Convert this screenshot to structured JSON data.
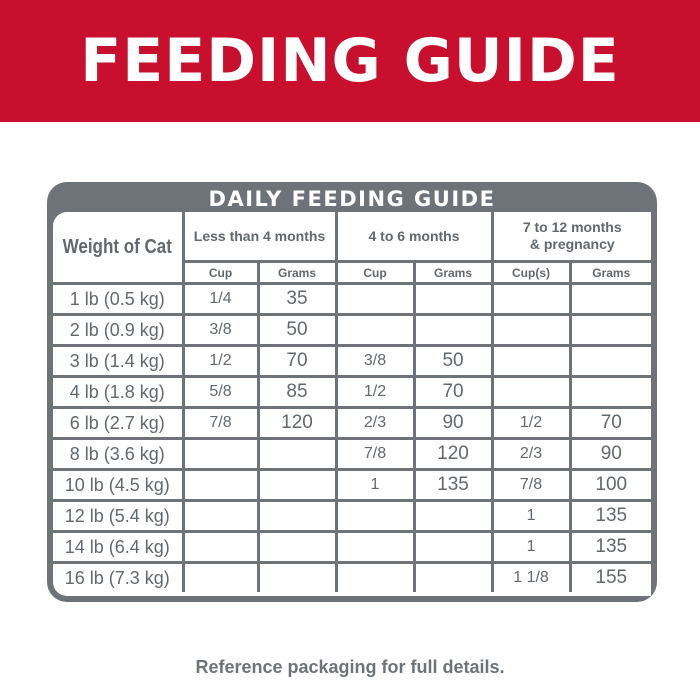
{
  "banner": {
    "title": "FEEDING GUIDE"
  },
  "colors": {
    "banner": "#c8102e",
    "table_border": "#6d7378",
    "text": "#62686d"
  },
  "table": {
    "title": "DAILY FEEDING GUIDE",
    "weight_header": "Weight of Cat",
    "age_groups": [
      "Less than 4 months",
      "4 to 6 months",
      "7 to 12 months & pregnancy"
    ],
    "sub_headers": [
      "Cup",
      "Grams",
      "Cup",
      "Grams",
      "Cup(s)",
      "Grams"
    ],
    "rows": [
      {
        "weight": "1 lb (0.5 kg)",
        "cells": [
          "1/4",
          "35",
          "",
          "",
          "",
          ""
        ]
      },
      {
        "weight": "2 lb (0.9 kg)",
        "cells": [
          "3/8",
          "50",
          "",
          "",
          "",
          ""
        ]
      },
      {
        "weight": "3 lb (1.4 kg)",
        "cells": [
          "1/2",
          "70",
          "3/8",
          "50",
          "",
          ""
        ]
      },
      {
        "weight": "4 lb (1.8 kg)",
        "cells": [
          "5/8",
          "85",
          "1/2",
          "70",
          "",
          ""
        ]
      },
      {
        "weight": "6 lb (2.7 kg)",
        "cells": [
          "7/8",
          "120",
          "2/3",
          "90",
          "1/2",
          "70"
        ]
      },
      {
        "weight": "8 lb (3.6 kg)",
        "cells": [
          "",
          "",
          "7/8",
          "120",
          "2/3",
          "90"
        ]
      },
      {
        "weight": "10 lb (4.5 kg)",
        "cells": [
          "",
          "",
          "1",
          "135",
          "7/8",
          "100"
        ]
      },
      {
        "weight": "12 lb (5.4 kg)",
        "cells": [
          "",
          "",
          "",
          "",
          "1",
          "135"
        ]
      },
      {
        "weight": "14 lb (6.4 kg)",
        "cells": [
          "",
          "",
          "",
          "",
          "1",
          "135"
        ]
      },
      {
        "weight": "16 lb (7.3 kg)",
        "cells": [
          "",
          "",
          "",
          "",
          "1 1/8",
          "155"
        ]
      }
    ]
  },
  "footer": {
    "note": "Reference packaging for full details."
  }
}
